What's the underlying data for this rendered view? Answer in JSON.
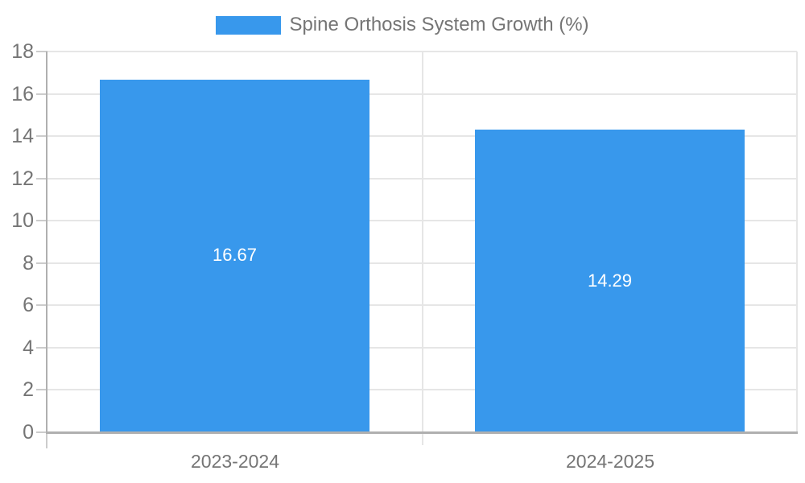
{
  "chart_data": {
    "type": "bar",
    "title": "Spine Orthosis System Growth (%)",
    "categories": [
      "2023-2024",
      "2024-2025"
    ],
    "values": [
      16.67,
      14.29
    ],
    "value_labels": [
      "16.67",
      "14.29"
    ],
    "xlabel": "",
    "ylabel": "",
    "ylim": [
      0,
      18
    ],
    "ytick_step": 2,
    "ytick_labels": [
      "0",
      "2",
      "4",
      "6",
      "8",
      "10",
      "12",
      "14",
      "16",
      "18"
    ],
    "grid": true,
    "legend_position": "top-center",
    "bar_color": "#3898ec",
    "value_label_color": "#ffffff",
    "axis_text_color": "#757575",
    "gridline_color": "#e6e6e6",
    "axis_line_color": "#b0b0b0",
    "tick_color": "#cccccc",
    "background_color": "#ffffff"
  }
}
